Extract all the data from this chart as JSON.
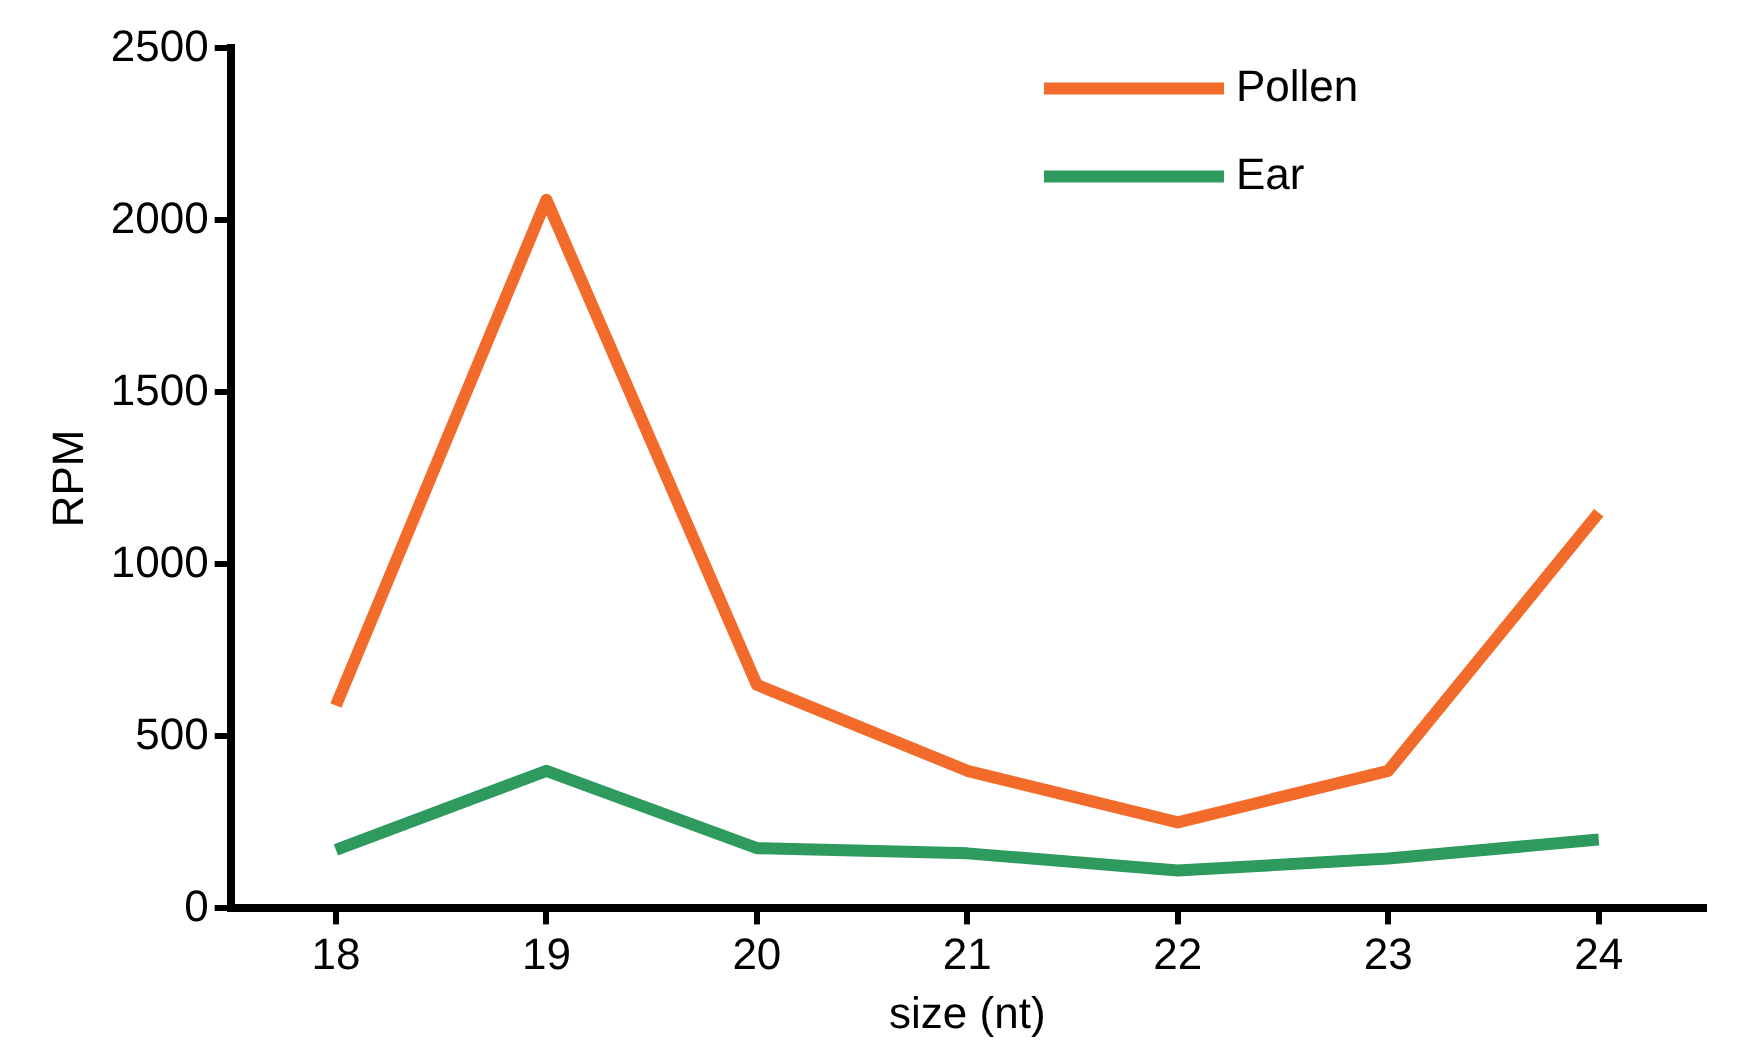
{
  "chart_data": {
    "type": "line",
    "xlabel": "size (nt)",
    "ylabel": "RPM",
    "categories": [
      "18",
      "19",
      "20",
      "21",
      "22",
      "23",
      "24"
    ],
    "series": [
      {
        "name": "Pollen",
        "color": "#f26b2a",
        "values": [
          590,
          2060,
          650,
          400,
          250,
          400,
          1150
        ]
      },
      {
        "name": "Ear",
        "color": "#2e9a5e",
        "values": [
          170,
          400,
          175,
          160,
          110,
          145,
          200
        ]
      }
    ],
    "ylim": [
      0,
      2500
    ],
    "yticks": [
      0,
      500,
      1000,
      1500,
      2000,
      2500
    ],
    "grid": false,
    "legend": "top right",
    "marker": "none",
    "line_style": "solid"
  }
}
